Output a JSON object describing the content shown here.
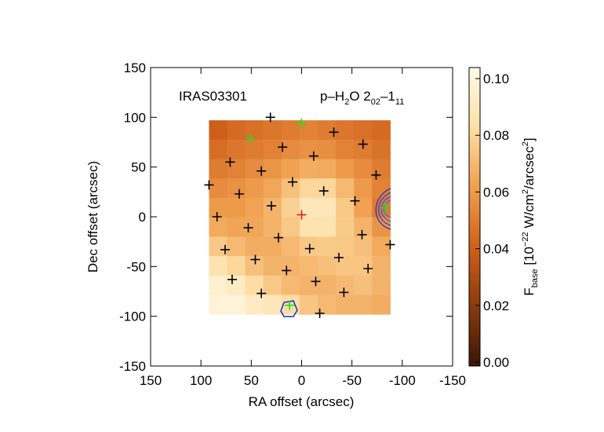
{
  "chart_data": {
    "type": "heatmap",
    "source_label": "IRAS03301",
    "line_label": {
      "p1": "p–H",
      "s1": "2",
      "p2": "O 2",
      "s2": "02",
      "p3": "–1",
      "s3": "11"
    },
    "xlabel": "RA offset (arcsec)",
    "ylabel": "Dec offset (arcsec)",
    "xlim": [
      150,
      -150
    ],
    "ylim": [
      -150,
      150
    ],
    "xticks": [
      150,
      100,
      50,
      0,
      -50,
      -100,
      -150
    ],
    "yticks": [
      -150,
      -100,
      -50,
      0,
      50,
      100,
      150
    ],
    "map": {
      "xlim": [
        92,
        -88
      ],
      "ylim": [
        -98,
        97
      ],
      "values": [
        [
          0.04,
          0.044,
          0.046,
          0.048,
          0.05,
          0.052,
          0.05,
          0.048,
          0.046,
          0.044
        ],
        [
          0.045,
          0.048,
          0.05,
          0.052,
          0.055,
          0.057,
          0.056,
          0.052,
          0.05,
          0.047
        ],
        [
          0.05,
          0.052,
          0.055,
          0.058,
          0.062,
          0.066,
          0.065,
          0.06,
          0.055,
          0.05
        ],
        [
          0.055,
          0.057,
          0.06,
          0.064,
          0.072,
          0.08,
          0.08,
          0.07,
          0.06,
          0.052
        ],
        [
          0.06,
          0.06,
          0.063,
          0.068,
          0.078,
          0.088,
          0.088,
          0.075,
          0.062,
          0.05
        ],
        [
          0.065,
          0.063,
          0.064,
          0.068,
          0.075,
          0.085,
          0.085,
          0.076,
          0.068,
          0.058
        ],
        [
          0.075,
          0.07,
          0.066,
          0.066,
          0.07,
          0.075,
          0.076,
          0.075,
          0.072,
          0.065
        ],
        [
          0.085,
          0.08,
          0.072,
          0.068,
          0.068,
          0.07,
          0.072,
          0.074,
          0.074,
          0.068
        ],
        [
          0.095,
          0.092,
          0.082,
          0.075,
          0.07,
          0.068,
          0.068,
          0.07,
          0.072,
          0.068
        ],
        [
          0.098,
          0.098,
          0.092,
          0.088,
          0.082,
          0.074,
          0.07,
          0.068,
          0.068,
          0.066
        ]
      ]
    },
    "colormap": [
      "#3a1505",
      "#8a3a10",
      "#d0601a",
      "#f0a050",
      "#fde0a8",
      "#fffae8"
    ],
    "colorbar": {
      "lim": [
        -0.0014,
        0.1039
      ],
      "ticks": [
        {
          "value": 0,
          "label": "0.00"
        },
        {
          "value": 0.02,
          "label": "0.02"
        },
        {
          "value": 0.04,
          "label": "0.04"
        },
        {
          "value": 0.06,
          "label": "0.06"
        },
        {
          "value": 0.08,
          "label": "0.08"
        },
        {
          "value": 0.1,
          "label": "0.10"
        }
      ],
      "label": {
        "p1": "F",
        "s1": "base",
        "p2": " [10",
        "e1": "−22",
        "p3": " W/cm",
        "e2": "2",
        "p4": "/arcsec",
        "e3": "2",
        "p5": "]"
      }
    },
    "markers": [
      {
        "color": "#000000",
        "x": [
          92,
          31,
          19,
          -32,
          -61,
          71,
          -12,
          40,
          -74,
          9,
          62,
          -22,
          -53,
          30,
          84,
          53,
          -60,
          23,
          -88,
          76,
          -8,
          46,
          -37,
          -66,
          15,
          69,
          -14,
          40,
          -42,
          -18
        ],
        "y": [
          32,
          100,
          70,
          85,
          73,
          55,
          61,
          46,
          42,
          35,
          23,
          26,
          16,
          11,
          0,
          -11,
          -18,
          -21,
          -28,
          -33,
          -32,
          -43,
          -41,
          -52,
          -54,
          -63,
          -65,
          -77,
          -76,
          -97
        ]
      },
      {
        "color": "#22dd22",
        "x": [
          0,
          51,
          -83,
          12
        ],
        "y": [
          94,
          79,
          9,
          -89
        ]
      },
      {
        "color": "#e02010",
        "x": [
          0
        ],
        "y": [
          2
        ]
      }
    ]
  }
}
